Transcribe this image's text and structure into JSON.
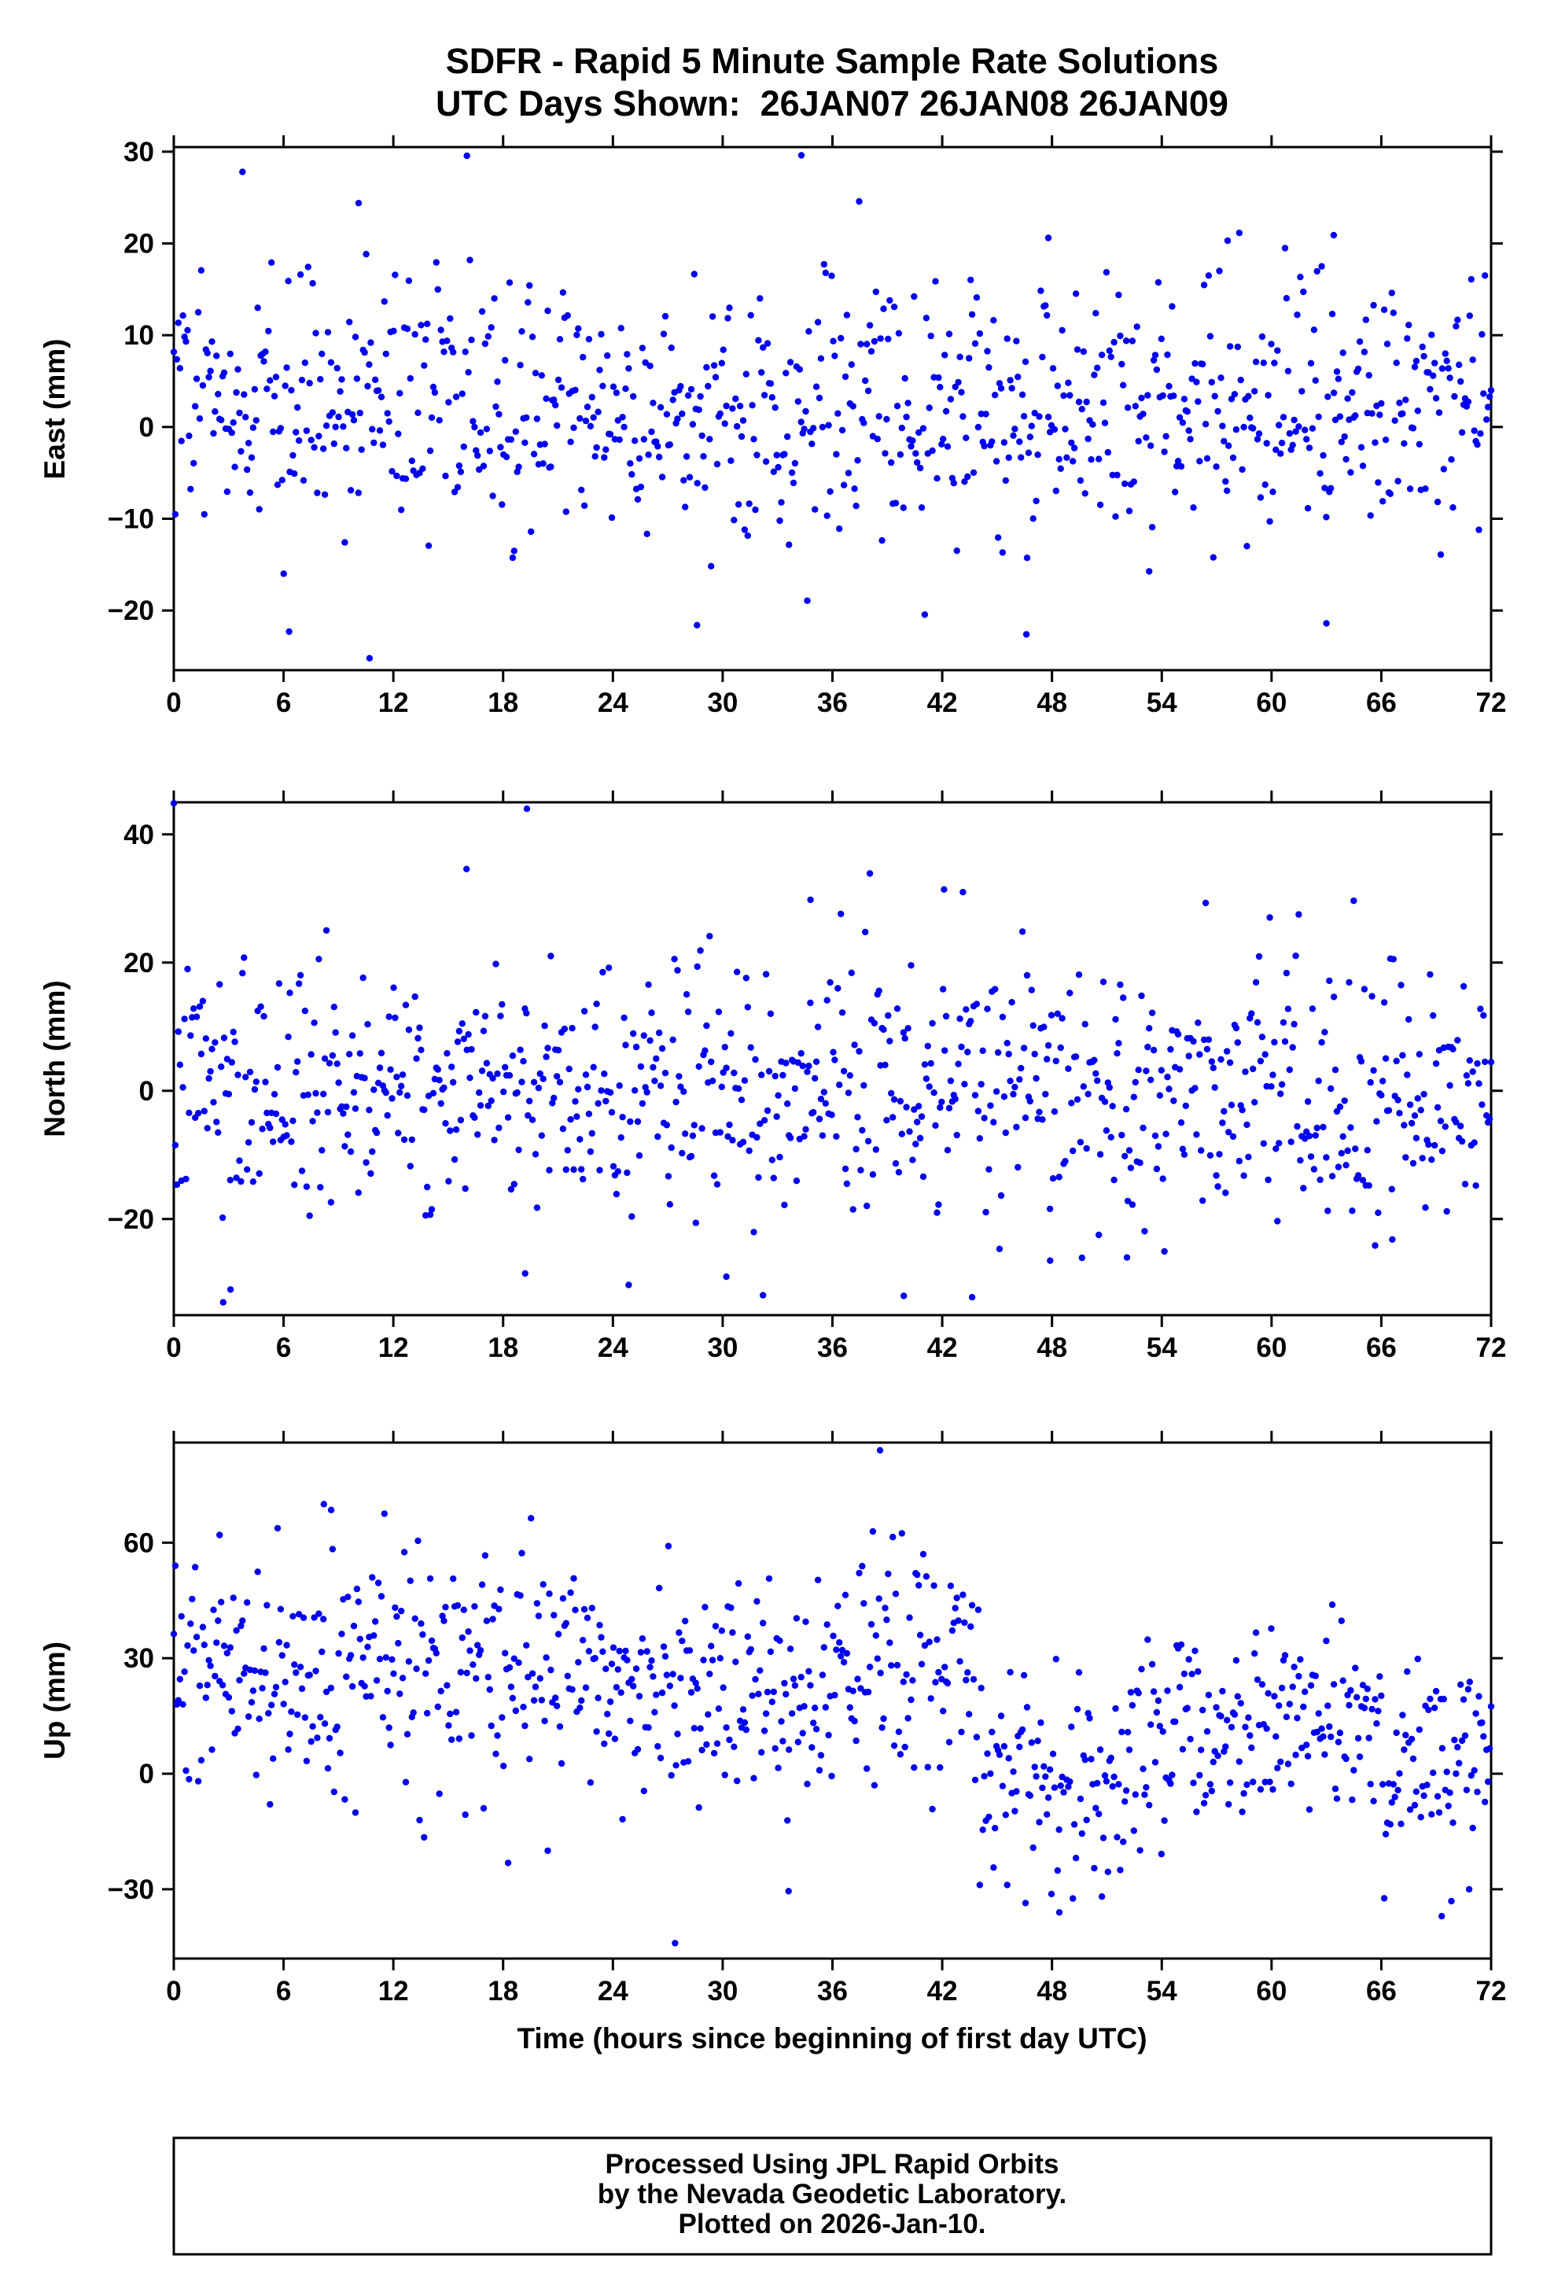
{
  "title": {
    "line1": "SDFR - Rapid 5 Minute Sample Rate Solutions",
    "line2": "UTC Days Shown:  26JAN07 26JAN08 26JAN09"
  },
  "footer": {
    "line1": "Processed Using JPL Rapid Orbits",
    "line2": "by the Nevada Geodetic Laboratory.",
    "line3": "Plotted on 2026-Jan-10."
  },
  "colors": {
    "points": "#0000ee",
    "frame": "#000000",
    "background": "#ffffff"
  },
  "chart_data": {
    "type": "scatter",
    "title": "SDFR - Rapid 5 Minute Sample Rate Solutions",
    "subtitle": "UTC Days Shown: 26JAN07 26JAN08 26JAN09",
    "station": "SDFR",
    "utc_days_shown": [
      "26JAN07",
      "26JAN08",
      "26JAN09"
    ],
    "sample_interval_minutes": 5,
    "grid": false,
    "legend": false,
    "x": {
      "label": "Time (hours since beginning of first day UTC)",
      "lim": [
        0,
        72
      ],
      "ticks": [
        0,
        6,
        12,
        18,
        24,
        30,
        36,
        42,
        48,
        54,
        60,
        66,
        72
      ]
    },
    "marker": {
      "color": "#0000ee",
      "radius_px": 4.2
    },
    "panels": [
      {
        "id": "east",
        "ylabel": "East (mm)",
        "ylim": [
          -26.5,
          30.5
        ],
        "yticks": [
          -20,
          -10,
          0,
          10,
          20,
          30
        ],
        "n_points": 864,
        "seed": 42,
        "tail_frac": 0.045,
        "tail_mult": 2.1,
        "segments": [
          {
            "x0": 0,
            "x1": 24,
            "mean": 3.0,
            "std": 6.8
          },
          {
            "x0": 24,
            "x1": 48,
            "mean": 1.2,
            "std": 6.9
          },
          {
            "x0": 48,
            "x1": 72,
            "mean": 2.2,
            "std": 6.6
          }
        ],
        "outliers": [
          [
            34.3,
            29.6
          ],
          [
            10.1,
            24.4
          ],
          [
            47.8,
            20.6
          ],
          [
            57.6,
            20.3
          ],
          [
            63.4,
            20.9
          ],
          [
            6.3,
            -22.3
          ],
          [
            10.7,
            -25.2
          ],
          [
            28.6,
            -21.6
          ],
          [
            46.6,
            -22.6
          ],
          [
            63.0,
            -21.4
          ]
        ]
      },
      {
        "id": "north",
        "ylabel": "North (mm)",
        "ylim": [
          -35,
          45
        ],
        "yticks": [
          -20,
          0,
          20,
          40
        ],
        "n_points": 864,
        "seed": 7,
        "tail_frac": 0.04,
        "tail_mult": 2.0,
        "segments": [
          {
            "x0": 0,
            "x1": 36,
            "mean": 0.5,
            "std": 9.5
          },
          {
            "x0": 36,
            "x1": 72,
            "mean": 0.0,
            "std": 9.6
          }
        ],
        "outliers": [
          [
            19.3,
            44.0
          ],
          [
            16.0,
            34.6
          ],
          [
            34.8,
            29.8
          ],
          [
            42.1,
            31.4
          ],
          [
            2.7,
            -33.0
          ],
          [
            3.1,
            -31.0
          ],
          [
            19.2,
            -28.5
          ],
          [
            30.2,
            -29.0
          ],
          [
            39.9,
            -32.0
          ],
          [
            47.9,
            -26.5
          ],
          [
            52.1,
            -26.0
          ],
          [
            66.6,
            -23.2
          ]
        ]
      },
      {
        "id": "up",
        "ylabel": "Up (mm)",
        "ylim": [
          -48,
          86
        ],
        "yticks": [
          -30,
          0,
          30,
          60
        ],
        "n_points": 864,
        "seed": 1234,
        "tail_frac": 0.04,
        "tail_mult": 1.8,
        "segments": [
          {
            "x0": 0,
            "x1": 12,
            "mean": 26,
            "std": 15
          },
          {
            "x0": 12,
            "x1": 24,
            "mean": 27,
            "std": 15
          },
          {
            "x0": 24,
            "x1": 36,
            "mean": 20,
            "std": 14
          },
          {
            "x0": 36,
            "x1": 44,
            "mean": 28,
            "std": 16
          },
          {
            "x0": 44,
            "x1": 52,
            "mean": -2,
            "std": 14
          },
          {
            "x0": 52,
            "x1": 60,
            "mean": 10,
            "std": 14
          },
          {
            "x0": 60,
            "x1": 66,
            "mean": 14,
            "std": 12
          },
          {
            "x0": 66,
            "x1": 72,
            "mean": 3,
            "std": 14
          }
        ],
        "outliers": [
          [
            38.6,
            84.0
          ],
          [
            8.2,
            70.0
          ],
          [
            8.6,
            68.5
          ],
          [
            2.5,
            62.0
          ],
          [
            27.4,
            -44.0
          ],
          [
            33.6,
            -30.5
          ],
          [
            48.4,
            -36.0
          ],
          [
            69.3,
            -37.0
          ],
          [
            70.8,
            -30.0
          ]
        ]
      }
    ]
  }
}
